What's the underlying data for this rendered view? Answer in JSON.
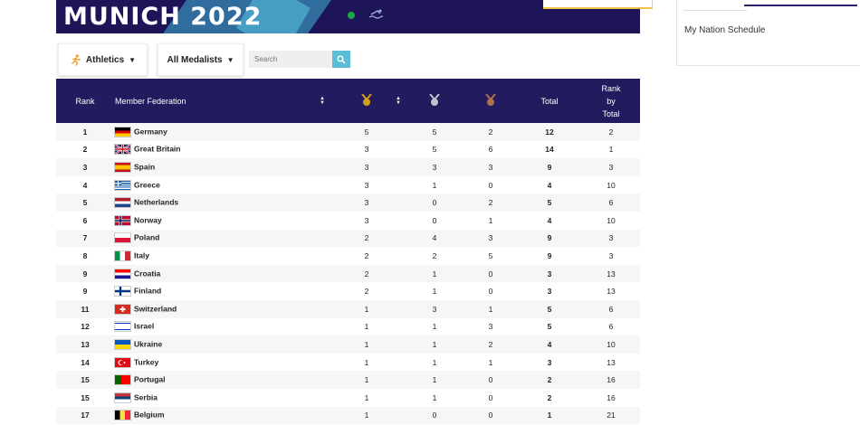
{
  "banner": {
    "title": "MUNICH 2022"
  },
  "sidebar": {
    "link": "My Nation Schedule"
  },
  "filters": {
    "sport": "Athletics",
    "medalists": "All Medalists",
    "search_placeholder": "Search"
  },
  "table": {
    "headers": {
      "rank": "Rank",
      "federation": "Member Federation",
      "total": "Total",
      "rank_by_total_1": "Rank",
      "rank_by_total_2": "by",
      "rank_by_total_3": "Total"
    },
    "medal_colors": {
      "gold": "#d4a017",
      "silver": "#bfc4c9",
      "bronze": "#b0714a"
    },
    "rows": [
      {
        "rank": "1",
        "nation": "Germany",
        "flag": "de",
        "gold": "5",
        "silver": "5",
        "bronze": "2",
        "total": "12",
        "rank_total": "2"
      },
      {
        "rank": "2",
        "nation": "Great Britain",
        "flag": "gb",
        "gold": "3",
        "silver": "5",
        "bronze": "6",
        "total": "14",
        "rank_total": "1"
      },
      {
        "rank": "3",
        "nation": "Spain",
        "flag": "es",
        "gold": "3",
        "silver": "3",
        "bronze": "3",
        "total": "9",
        "rank_total": "3"
      },
      {
        "rank": "4",
        "nation": "Greece",
        "flag": "gr",
        "gold": "3",
        "silver": "1",
        "bronze": "0",
        "total": "4",
        "rank_total": "10"
      },
      {
        "rank": "5",
        "nation": "Netherlands",
        "flag": "nl",
        "gold": "3",
        "silver": "0",
        "bronze": "2",
        "total": "5",
        "rank_total": "6"
      },
      {
        "rank": "6",
        "nation": "Norway",
        "flag": "no",
        "gold": "3",
        "silver": "0",
        "bronze": "1",
        "total": "4",
        "rank_total": "10"
      },
      {
        "rank": "7",
        "nation": "Poland",
        "flag": "pl",
        "gold": "2",
        "silver": "4",
        "bronze": "3",
        "total": "9",
        "rank_total": "3"
      },
      {
        "rank": "8",
        "nation": "Italy",
        "flag": "it",
        "gold": "2",
        "silver": "2",
        "bronze": "5",
        "total": "9",
        "rank_total": "3"
      },
      {
        "rank": "9",
        "nation": "Croatia",
        "flag": "hr",
        "gold": "2",
        "silver": "1",
        "bronze": "0",
        "total": "3",
        "rank_total": "13"
      },
      {
        "rank": "9",
        "nation": "Finland",
        "flag": "fi",
        "gold": "2",
        "silver": "1",
        "bronze": "0",
        "total": "3",
        "rank_total": "13"
      },
      {
        "rank": "11",
        "nation": "Switzerland",
        "flag": "ch",
        "gold": "1",
        "silver": "3",
        "bronze": "1",
        "total": "5",
        "rank_total": "6"
      },
      {
        "rank": "12",
        "nation": "Israel",
        "flag": "il",
        "gold": "1",
        "silver": "1",
        "bronze": "3",
        "total": "5",
        "rank_total": "6"
      },
      {
        "rank": "13",
        "nation": "Ukraine",
        "flag": "ua",
        "gold": "1",
        "silver": "1",
        "bronze": "2",
        "total": "4",
        "rank_total": "10"
      },
      {
        "rank": "14",
        "nation": "Turkey",
        "flag": "tr",
        "gold": "1",
        "silver": "1",
        "bronze": "1",
        "total": "3",
        "rank_total": "13"
      },
      {
        "rank": "15",
        "nation": "Portugal",
        "flag": "pt",
        "gold": "1",
        "silver": "1",
        "bronze": "0",
        "total": "2",
        "rank_total": "16"
      },
      {
        "rank": "15",
        "nation": "Serbia",
        "flag": "rs",
        "gold": "1",
        "silver": "1",
        "bronze": "0",
        "total": "2",
        "rank_total": "16"
      },
      {
        "rank": "17",
        "nation": "Belgium",
        "flag": "be",
        "gold": "1",
        "silver": "0",
        "bronze": "0",
        "total": "1",
        "rank_total": "21"
      }
    ]
  }
}
